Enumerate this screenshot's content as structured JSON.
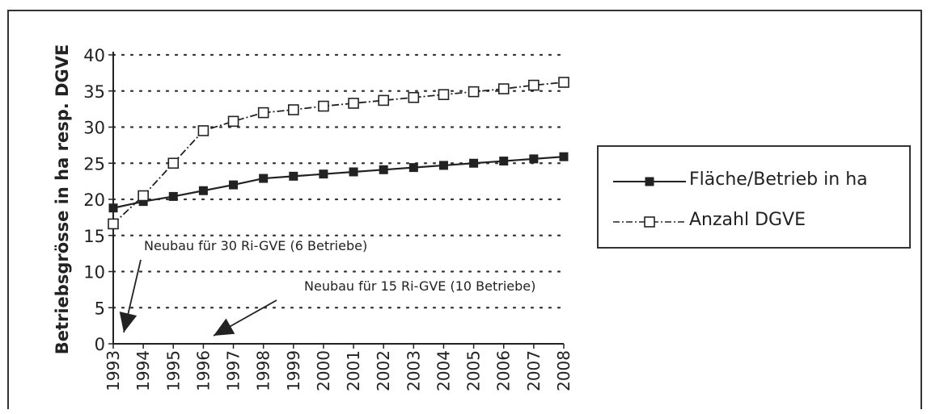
{
  "chart_data": {
    "type": "line",
    "ylabel": "Betriebsgrösse in ha resp. DGVE",
    "xlabel": "",
    "ylim": [
      0,
      40
    ],
    "yticks": [
      0,
      5,
      10,
      15,
      20,
      25,
      30,
      35,
      40
    ],
    "grid": "dotted-horizontal",
    "legend_position": "right",
    "x": [
      "1993",
      "1994",
      "1995",
      "1996",
      "1997",
      "1998",
      "1999",
      "2000",
      "2001",
      "2002",
      "2003",
      "2004",
      "2005",
      "2006",
      "2007",
      "2008"
    ],
    "series": [
      {
        "name": "Fläche/Betrieb in ha",
        "marker": "filled-square",
        "line": "solid",
        "values": [
          18.8,
          19.7,
          20.4,
          21.2,
          22.0,
          22.9,
          23.2,
          23.5,
          23.8,
          24.1,
          24.4,
          24.7,
          25.0,
          25.3,
          25.6,
          25.9
        ]
      },
      {
        "name": "Anzahl DGVE",
        "marker": "open-square",
        "line": "dash-dot",
        "values": [
          16.6,
          20.5,
          25.0,
          29.5,
          30.8,
          32.0,
          32.4,
          32.9,
          33.3,
          33.7,
          34.1,
          34.5,
          34.9,
          35.3,
          35.8,
          36.2
        ]
      }
    ],
    "annotations": [
      {
        "text": "Neubau für 30 Ri-GVE (6 Betriebe)",
        "target_x": "1993",
        "target_y": 0
      },
      {
        "text": "Neubau für 15 Ri-GVE (10 Betriebe)",
        "target_x": "1996",
        "target_y": 0
      }
    ]
  },
  "colors": {
    "line": "#222222",
    "grid": "#333333",
    "frame": "#333333"
  }
}
